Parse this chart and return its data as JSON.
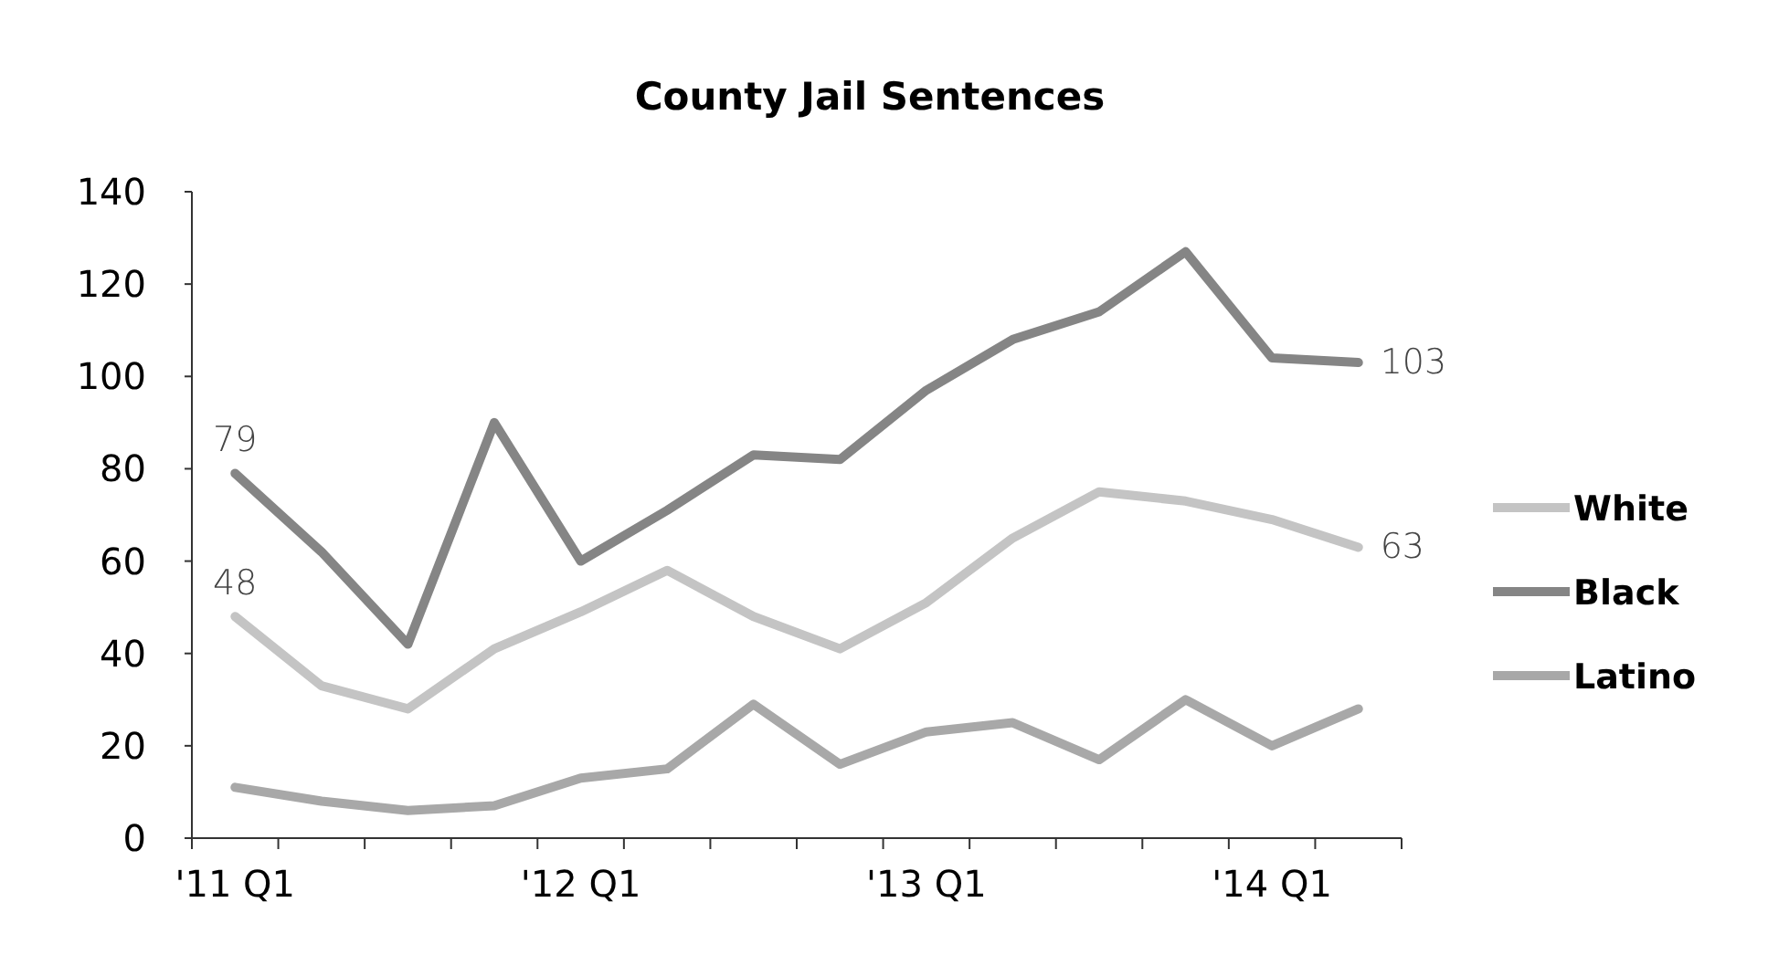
{
  "chart_data": {
    "type": "line",
    "title": "County Jail Sentences",
    "categories": [
      "'11 Q1",
      null,
      null,
      null,
      "'12 Q1",
      null,
      null,
      null,
      "'13 Q1",
      null,
      null,
      null,
      "'14 Q1",
      null
    ],
    "ylim": [
      0,
      140
    ],
    "yticks": [
      0,
      20,
      40,
      60,
      80,
      100,
      120,
      140
    ],
    "grid": false,
    "legend": "right",
    "marker": "none",
    "line_style": "solid",
    "series": [
      {
        "name": "White",
        "color": "#c4c4c4",
        "values": [
          48,
          33,
          28,
          41,
          49,
          58,
          48,
          41,
          51,
          65,
          75,
          73,
          69,
          63
        ],
        "value_labels": [
          "48",
          null,
          null,
          null,
          null,
          null,
          null,
          null,
          null,
          null,
          null,
          null,
          null,
          "63"
        ]
      },
      {
        "name": "Black",
        "color": "#858585",
        "values": [
          79,
          62,
          42,
          90,
          60,
          71,
          83,
          82,
          97,
          108,
          114,
          127,
          104,
          103
        ],
        "value_labels": [
          "79",
          null,
          null,
          null,
          null,
          null,
          null,
          null,
          null,
          null,
          null,
          null,
          null,
          "103"
        ]
      },
      {
        "name": "Latino",
        "color": "#a8a8a8",
        "values": [
          11,
          8,
          6,
          7,
          13,
          15,
          29,
          16,
          23,
          25,
          17,
          30,
          20,
          28
        ]
      }
    ]
  }
}
